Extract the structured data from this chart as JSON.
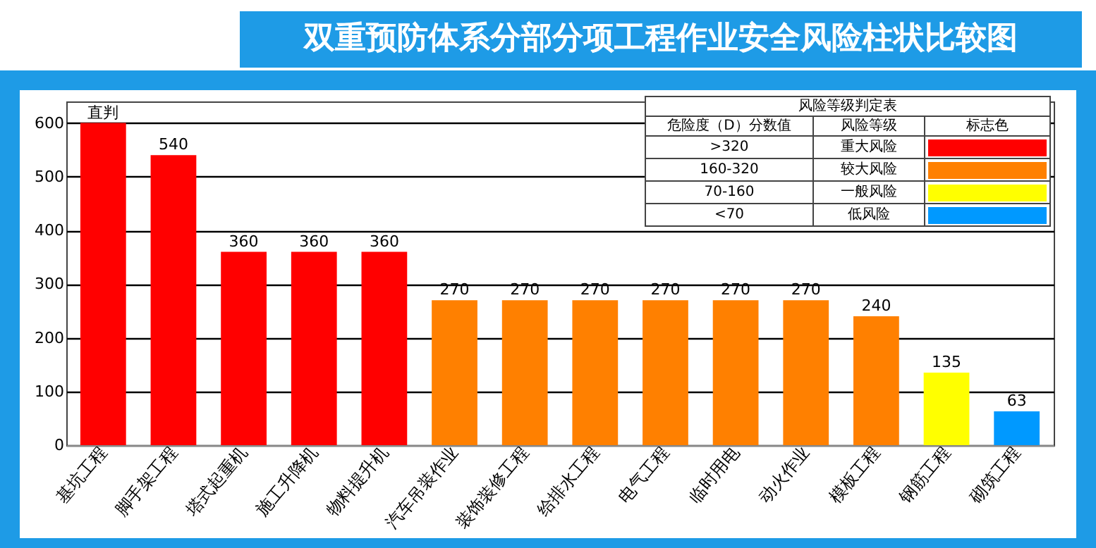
{
  "chart_data": {
    "type": "bar",
    "title": "双重预防体系分部分项工程作业安全风险柱状比较图",
    "categories": [
      "基坑工程",
      "脚手架工程",
      "塔式起重机",
      "施工升降机",
      "物料提升机",
      "汽车吊装作业",
      "装饰装修工程",
      "给排水工程",
      "电气工程",
      "临时用电",
      "动火作业",
      "模板工程",
      "钢筋工程",
      "砌筑工程"
    ],
    "values": [
      600,
      540,
      360,
      360,
      360,
      270,
      270,
      270,
      270,
      270,
      270,
      240,
      135,
      63
    ],
    "colors": [
      "#ff0000",
      "#ff0000",
      "#ff0000",
      "#ff0000",
      "#ff0000",
      "#ff8000",
      "#ff8000",
      "#ff8000",
      "#ff8000",
      "#ff8000",
      "#ff8000",
      "#ff8000",
      "#ffff00",
      "#0099ff"
    ],
    "value_labels": [
      "直判",
      "540",
      "360",
      "360",
      "360",
      "270",
      "270",
      "270",
      "270",
      "270",
      "270",
      "240",
      "135",
      "63"
    ],
    "ylim": [
      0,
      640
    ],
    "yticks": [
      0,
      100,
      200,
      300,
      400,
      500,
      600
    ],
    "grid": "y",
    "legend_title": "风险等级判定表",
    "annotations": [
      "危险度（D）分数值",
      "风险等级",
      "标志色",
      ">320",
      "重大风险",
      "160-320",
      "较大风险",
      "70-160",
      "一般风险",
      "<70",
      "低风险"
    ]
  }
}
